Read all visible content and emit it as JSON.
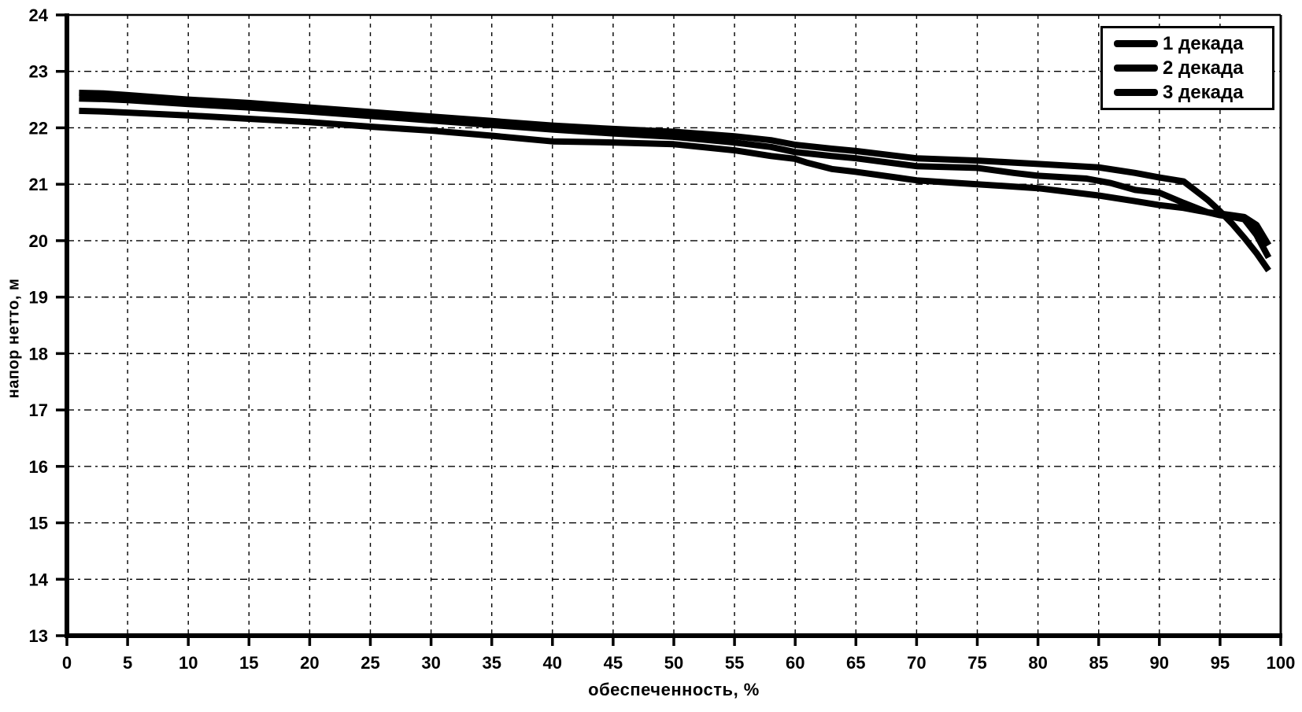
{
  "figure": {
    "background_color": "#ffffff",
    "ink_color": "#000000"
  },
  "chart_data": {
    "type": "line",
    "title": "",
    "xlabel": "обеспеченность, %",
    "ylabel": "напор нетто, м",
    "xlim": [
      0,
      100
    ],
    "ylim": [
      13,
      24
    ],
    "x_ticks": [
      0,
      5,
      10,
      15,
      20,
      25,
      30,
      35,
      40,
      45,
      50,
      55,
      60,
      65,
      70,
      75,
      80,
      85,
      90,
      95,
      100
    ],
    "y_ticks": [
      13,
      14,
      15,
      16,
      17,
      18,
      19,
      20,
      21,
      22,
      23,
      24
    ],
    "grid": "dashed",
    "legend_position": "top-right",
    "line_color": "#000000",
    "series": [
      {
        "name": "1 декада",
        "points": [
          [
            1,
            22.62
          ],
          [
            3,
            22.61
          ],
          [
            5,
            22.58
          ],
          [
            10,
            22.5
          ],
          [
            15,
            22.44
          ],
          [
            20,
            22.36
          ],
          [
            25,
            22.28
          ],
          [
            30,
            22.2
          ],
          [
            35,
            22.12
          ],
          [
            40,
            22.04
          ],
          [
            45,
            21.98
          ],
          [
            50,
            21.93
          ],
          [
            55,
            21.85
          ],
          [
            58,
            21.78
          ],
          [
            60,
            21.7
          ],
          [
            63,
            21.63
          ],
          [
            65,
            21.59
          ],
          [
            70,
            21.46
          ],
          [
            75,
            21.42
          ],
          [
            80,
            21.36
          ],
          [
            85,
            21.3
          ],
          [
            88,
            21.2
          ],
          [
            90,
            21.12
          ],
          [
            92,
            21.05
          ],
          [
            94,
            20.72
          ],
          [
            95,
            20.52
          ],
          [
            96,
            20.3
          ],
          [
            97,
            20.05
          ],
          [
            98,
            19.78
          ],
          [
            99,
            19.47
          ]
        ]
      },
      {
        "name": "2 декада",
        "points": [
          [
            1,
            22.52
          ],
          [
            3,
            22.51
          ],
          [
            5,
            22.49
          ],
          [
            10,
            22.42
          ],
          [
            15,
            22.36
          ],
          [
            20,
            22.29
          ],
          [
            25,
            22.21
          ],
          [
            30,
            22.13
          ],
          [
            35,
            22.05
          ],
          [
            40,
            21.97
          ],
          [
            45,
            21.9
          ],
          [
            50,
            21.84
          ],
          [
            55,
            21.74
          ],
          [
            58,
            21.66
          ],
          [
            60,
            21.57
          ],
          [
            63,
            21.5
          ],
          [
            65,
            21.46
          ],
          [
            70,
            21.32
          ],
          [
            75,
            21.29
          ],
          [
            78,
            21.2
          ],
          [
            80,
            21.15
          ],
          [
            84,
            21.1
          ],
          [
            86,
            21.02
          ],
          [
            88,
            20.9
          ],
          [
            90,
            20.85
          ],
          [
            92,
            20.67
          ],
          [
            94,
            20.5
          ],
          [
            95,
            20.45
          ],
          [
            96,
            20.42
          ],
          [
            97,
            20.38
          ],
          [
            98,
            20.1
          ],
          [
            99,
            19.7
          ]
        ]
      },
      {
        "name": "3 декада",
        "points": [
          [
            1,
            22.3
          ],
          [
            3,
            22.29
          ],
          [
            5,
            22.27
          ],
          [
            10,
            22.22
          ],
          [
            15,
            22.16
          ],
          [
            20,
            22.1
          ],
          [
            25,
            22.02
          ],
          [
            30,
            21.95
          ],
          [
            35,
            21.86
          ],
          [
            40,
            21.76
          ],
          [
            45,
            21.74
          ],
          [
            50,
            21.71
          ],
          [
            55,
            21.6
          ],
          [
            58,
            21.5
          ],
          [
            60,
            21.45
          ],
          [
            61,
            21.38
          ],
          [
            63,
            21.27
          ],
          [
            65,
            21.22
          ],
          [
            70,
            21.07
          ],
          [
            75,
            21.0
          ],
          [
            80,
            20.93
          ],
          [
            85,
            20.8
          ],
          [
            88,
            20.7
          ],
          [
            90,
            20.63
          ],
          [
            92,
            20.58
          ],
          [
            94,
            20.5
          ],
          [
            95,
            20.48
          ],
          [
            96,
            20.45
          ],
          [
            97,
            20.42
          ],
          [
            98,
            20.28
          ],
          [
            99,
            19.92
          ]
        ]
      }
    ]
  }
}
